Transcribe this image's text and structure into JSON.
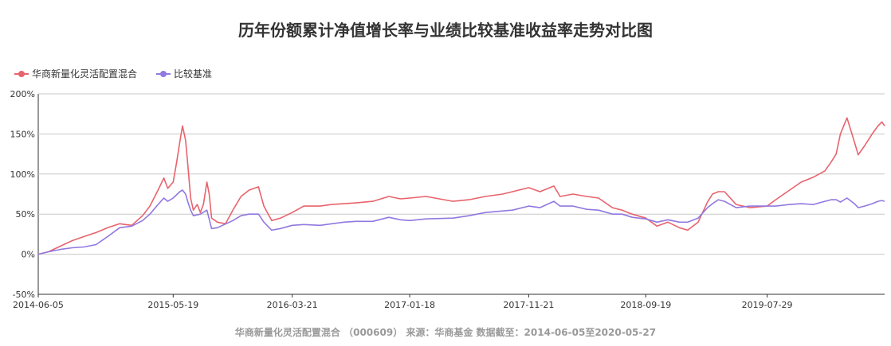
{
  "chart_data": {
    "type": "line",
    "title": "历年份额累计净值增长率与业绩比较基准收益率走势对比图",
    "subtitle": "华商新量化灵活配置混合 （000609） 来源：华商基金 数据截至：2014-06-05至2020-05-27",
    "ylim": [
      -50,
      200
    ],
    "yticks": [
      "200%",
      "150%",
      "100%",
      "50%",
      "0%",
      "-50%"
    ],
    "ytick_values": [
      200,
      150,
      100,
      50,
      0,
      -50
    ],
    "xlim": [
      "2014-06-05",
      "2020-05-27"
    ],
    "xticks": [
      "2014-06-05",
      "2015-05-19",
      "2016-03-21",
      "2017-01-18",
      "2017-11-21",
      "2018-09-19",
      "2019-07-29"
    ],
    "grid": true,
    "legend_position": "top-left",
    "series": [
      {
        "name": "华商新量化灵活配置混合",
        "color": "#e8636c",
        "points": [
          [
            "2014-06-05",
            0
          ],
          [
            "2014-07-01",
            3
          ],
          [
            "2014-08-01",
            10
          ],
          [
            "2014-09-01",
            17
          ],
          [
            "2014-10-01",
            22
          ],
          [
            "2014-11-01",
            27
          ],
          [
            "2014-12-01",
            33
          ],
          [
            "2015-01-01",
            38
          ],
          [
            "2015-02-01",
            36
          ],
          [
            "2015-03-01",
            48
          ],
          [
            "2015-03-20",
            60
          ],
          [
            "2015-04-10",
            80
          ],
          [
            "2015-04-25",
            95
          ],
          [
            "2015-05-05",
            82
          ],
          [
            "2015-05-19",
            90
          ],
          [
            "2015-05-28",
            115
          ],
          [
            "2015-06-05",
            140
          ],
          [
            "2015-06-12",
            160
          ],
          [
            "2015-06-20",
            142
          ],
          [
            "2015-06-26",
            110
          ],
          [
            "2015-07-03",
            70
          ],
          [
            "2015-07-10",
            55
          ],
          [
            "2015-07-20",
            62
          ],
          [
            "2015-07-28",
            52
          ],
          [
            "2015-08-05",
            62
          ],
          [
            "2015-08-14",
            90
          ],
          [
            "2015-08-20",
            75
          ],
          [
            "2015-08-26",
            45
          ],
          [
            "2015-09-10",
            40
          ],
          [
            "2015-10-01",
            38
          ],
          [
            "2015-10-20",
            55
          ],
          [
            "2015-11-10",
            72
          ],
          [
            "2015-12-01",
            80
          ],
          [
            "2015-12-25",
            84
          ],
          [
            "2016-01-08",
            60
          ],
          [
            "2016-01-28",
            42
          ],
          [
            "2016-02-20",
            45
          ],
          [
            "2016-03-21",
            52
          ],
          [
            "2016-04-20",
            60
          ],
          [
            "2016-06-01",
            60
          ],
          [
            "2016-07-01",
            62
          ],
          [
            "2016-08-01",
            63
          ],
          [
            "2016-09-01",
            64
          ],
          [
            "2016-10-15",
            66
          ],
          [
            "2016-11-25",
            72
          ],
          [
            "2016-12-25",
            69
          ],
          [
            "2017-01-18",
            70
          ],
          [
            "2017-03-01",
            72
          ],
          [
            "2017-05-10",
            66
          ],
          [
            "2017-06-20",
            68
          ],
          [
            "2017-08-01",
            72
          ],
          [
            "2017-09-15",
            75
          ],
          [
            "2017-10-10",
            78
          ],
          [
            "2017-11-21",
            83
          ],
          [
            "2017-12-20",
            78
          ],
          [
            "2018-01-25",
            85
          ],
          [
            "2018-02-10",
            72
          ],
          [
            "2018-03-15",
            75
          ],
          [
            "2018-04-20",
            72
          ],
          [
            "2018-05-20",
            70
          ],
          [
            "2018-06-25",
            58
          ],
          [
            "2018-07-20",
            55
          ],
          [
            "2018-08-15",
            50
          ],
          [
            "2018-09-19",
            45
          ],
          [
            "2018-10-18",
            35
          ],
          [
            "2018-11-15",
            40
          ],
          [
            "2018-12-15",
            33
          ],
          [
            "2019-01-05",
            30
          ],
          [
            "2019-02-01",
            40
          ],
          [
            "2019-02-25",
            65
          ],
          [
            "2019-03-10",
            75
          ],
          [
            "2019-03-25",
            78
          ],
          [
            "2019-04-10",
            78
          ],
          [
            "2019-05-10",
            62
          ],
          [
            "2019-06-15",
            58
          ],
          [
            "2019-07-29",
            60
          ],
          [
            "2019-08-20",
            68
          ],
          [
            "2019-09-25",
            80
          ],
          [
            "2019-10-25",
            90
          ],
          [
            "2019-11-25",
            96
          ],
          [
            "2019-12-25",
            104
          ],
          [
            "2020-01-10",
            115
          ],
          [
            "2020-01-23",
            125
          ],
          [
            "2020-02-03",
            150
          ],
          [
            "2020-02-20",
            170
          ],
          [
            "2020-03-10",
            140
          ],
          [
            "2020-03-20",
            124
          ],
          [
            "2020-04-05",
            135
          ],
          [
            "2020-04-25",
            150
          ],
          [
            "2020-05-10",
            160
          ],
          [
            "2020-05-20",
            165
          ],
          [
            "2020-05-27",
            160
          ]
        ]
      },
      {
        "name": "比较基准",
        "color": "#9178e0",
        "points": [
          [
            "2014-06-05",
            0
          ],
          [
            "2014-07-01",
            3
          ],
          [
            "2014-08-01",
            6
          ],
          [
            "2014-09-01",
            8
          ],
          [
            "2014-10-01",
            9
          ],
          [
            "2014-11-01",
            12
          ],
          [
            "2014-12-01",
            22
          ],
          [
            "2015-01-01",
            33
          ],
          [
            "2015-02-01",
            35
          ],
          [
            "2015-03-01",
            42
          ],
          [
            "2015-03-20",
            50
          ],
          [
            "2015-04-10",
            62
          ],
          [
            "2015-04-25",
            70
          ],
          [
            "2015-05-05",
            66
          ],
          [
            "2015-05-19",
            70
          ],
          [
            "2015-06-05",
            78
          ],
          [
            "2015-06-12",
            80
          ],
          [
            "2015-06-20",
            75
          ],
          [
            "2015-06-26",
            65
          ],
          [
            "2015-07-03",
            55
          ],
          [
            "2015-07-10",
            48
          ],
          [
            "2015-07-28",
            50
          ],
          [
            "2015-08-14",
            55
          ],
          [
            "2015-08-26",
            32
          ],
          [
            "2015-09-10",
            33
          ],
          [
            "2015-10-20",
            42
          ],
          [
            "2015-11-10",
            48
          ],
          [
            "2015-12-01",
            50
          ],
          [
            "2015-12-25",
            50
          ],
          [
            "2016-01-08",
            40
          ],
          [
            "2016-01-28",
            30
          ],
          [
            "2016-02-20",
            32
          ],
          [
            "2016-03-21",
            36
          ],
          [
            "2016-04-20",
            37
          ],
          [
            "2016-06-01",
            36
          ],
          [
            "2016-07-01",
            38
          ],
          [
            "2016-08-01",
            40
          ],
          [
            "2016-09-01",
            41
          ],
          [
            "2016-10-15",
            41
          ],
          [
            "2016-11-25",
            46
          ],
          [
            "2016-12-25",
            43
          ],
          [
            "2017-01-18",
            42
          ],
          [
            "2017-03-01",
            44
          ],
          [
            "2017-05-10",
            45
          ],
          [
            "2017-06-20",
            48
          ],
          [
            "2017-08-01",
            52
          ],
          [
            "2017-09-15",
            54
          ],
          [
            "2017-10-10",
            55
          ],
          [
            "2017-11-21",
            60
          ],
          [
            "2017-12-20",
            58
          ],
          [
            "2018-01-25",
            66
          ],
          [
            "2018-02-10",
            60
          ],
          [
            "2018-03-15",
            60
          ],
          [
            "2018-04-20",
            56
          ],
          [
            "2018-05-20",
            55
          ],
          [
            "2018-06-25",
            50
          ],
          [
            "2018-07-20",
            50
          ],
          [
            "2018-08-15",
            46
          ],
          [
            "2018-09-19",
            44
          ],
          [
            "2018-10-18",
            40
          ],
          [
            "2018-11-15",
            43
          ],
          [
            "2018-12-15",
            40
          ],
          [
            "2019-01-05",
            40
          ],
          [
            "2019-02-01",
            45
          ],
          [
            "2019-02-25",
            58
          ],
          [
            "2019-03-10",
            63
          ],
          [
            "2019-03-25",
            68
          ],
          [
            "2019-04-10",
            66
          ],
          [
            "2019-05-10",
            58
          ],
          [
            "2019-06-15",
            60
          ],
          [
            "2019-07-29",
            60
          ],
          [
            "2019-08-20",
            60
          ],
          [
            "2019-09-25",
            62
          ],
          [
            "2019-10-25",
            63
          ],
          [
            "2019-11-25",
            62
          ],
          [
            "2019-12-25",
            66
          ],
          [
            "2020-01-10",
            68
          ],
          [
            "2020-01-23",
            68
          ],
          [
            "2020-02-03",
            65
          ],
          [
            "2020-02-20",
            70
          ],
          [
            "2020-03-10",
            63
          ],
          [
            "2020-03-20",
            58
          ],
          [
            "2020-04-05",
            60
          ],
          [
            "2020-04-25",
            63
          ],
          [
            "2020-05-10",
            66
          ],
          [
            "2020-05-20",
            67
          ],
          [
            "2020-05-27",
            66
          ]
        ]
      }
    ]
  }
}
